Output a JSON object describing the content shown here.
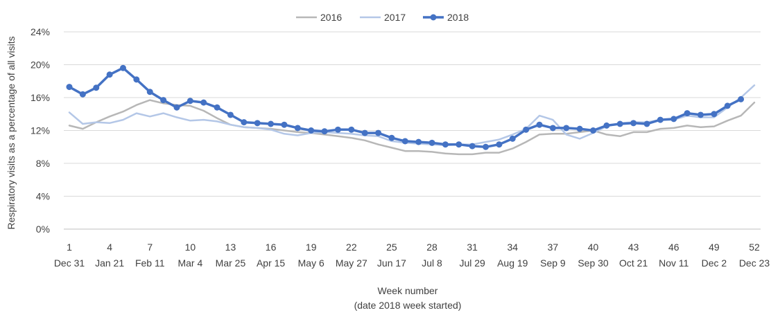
{
  "chart_data": {
    "type": "line",
    "title": "",
    "xlabel": "Week number",
    "xlabel_sub": "(date 2018 week started)",
    "ylabel": "Respiratory visits as a percentage of all visits",
    "ylim": [
      0,
      24
    ],
    "yticks": [
      "0%",
      "4%",
      "8%",
      "12%",
      "16%",
      "20%",
      "24%"
    ],
    "y_tick_values": [
      0,
      4,
      8,
      12,
      16,
      20,
      24
    ],
    "x_tick_weeks": [
      1,
      4,
      7,
      10,
      13,
      16,
      19,
      22,
      25,
      28,
      31,
      34,
      37,
      40,
      43,
      46,
      49,
      52
    ],
    "x_tick_dates": [
      "Dec 31",
      "Jan 21",
      "Feb 11",
      "Mar 4",
      "Mar 25",
      "Apr 15",
      "May 6",
      "May 27",
      "Jun 17",
      "Jul 8",
      "Jul 29",
      "Aug 19",
      "Sep 9",
      "Sep 30",
      "Oct 21",
      "Nov 11",
      "Dec 2",
      "Dec 23"
    ],
    "grid": "horizontal",
    "legend_position": "top-center",
    "series": [
      {
        "name": "2016",
        "color": "#b7b7b7",
        "markers": false,
        "x": [
          1,
          2,
          3,
          4,
          5,
          6,
          7,
          8,
          9,
          10,
          11,
          12,
          13,
          14,
          15,
          16,
          17,
          18,
          19,
          20,
          21,
          22,
          23,
          24,
          25,
          26,
          27,
          28,
          29,
          30,
          31,
          32,
          33,
          34,
          35,
          36,
          37,
          38,
          39,
          40,
          41,
          42,
          43,
          44,
          45,
          46,
          47,
          48,
          49,
          50,
          51,
          52
        ],
        "values": [
          12.6,
          12.2,
          13.0,
          13.7,
          14.3,
          15.1,
          15.7,
          15.3,
          15.1,
          15.0,
          14.4,
          13.5,
          12.7,
          12.4,
          12.3,
          12.2,
          12.0,
          11.8,
          11.7,
          11.5,
          11.3,
          11.1,
          10.8,
          10.3,
          9.9,
          9.5,
          9.5,
          9.4,
          9.2,
          9.1,
          9.1,
          9.3,
          9.3,
          9.8,
          10.6,
          11.5,
          11.6,
          11.6,
          11.8,
          12.0,
          11.5,
          11.3,
          11.8,
          11.8,
          12.2,
          12.3,
          12.6,
          12.4,
          12.5,
          13.2,
          13.8,
          15.4
        ]
      },
      {
        "name": "2017",
        "color": "#b4c7e7",
        "markers": false,
        "x": [
          1,
          2,
          3,
          4,
          5,
          6,
          7,
          8,
          9,
          10,
          11,
          12,
          13,
          14,
          15,
          16,
          17,
          18,
          19,
          20,
          21,
          22,
          23,
          24,
          25,
          26,
          27,
          28,
          29,
          30,
          31,
          32,
          33,
          34,
          35,
          36,
          37,
          38,
          39,
          40,
          41,
          42,
          43,
          44,
          45,
          46,
          47,
          48,
          49,
          50,
          51,
          52
        ],
        "values": [
          14.2,
          12.8,
          13.0,
          12.9,
          13.3,
          14.1,
          13.7,
          14.1,
          13.6,
          13.2,
          13.3,
          13.1,
          12.7,
          12.4,
          12.3,
          12.1,
          11.6,
          11.4,
          11.7,
          11.8,
          11.7,
          11.6,
          11.4,
          11.3,
          10.7,
          10.5,
          10.4,
          10.3,
          10.2,
          10.3,
          10.3,
          10.6,
          10.9,
          11.5,
          12.2,
          13.8,
          13.3,
          11.5,
          11.0,
          11.7,
          12.5,
          12.9,
          13.0,
          13.0,
          13.3,
          13.3,
          13.8,
          13.6,
          13.6,
          14.8,
          16.0,
          17.5
        ]
      },
      {
        "name": "2018",
        "color": "#4472c4",
        "markers": true,
        "x": [
          1,
          2,
          3,
          4,
          5,
          6,
          7,
          8,
          9,
          10,
          11,
          12,
          13,
          14,
          15,
          16,
          17,
          18,
          19,
          20,
          21,
          22,
          23,
          24,
          25,
          26,
          27,
          28,
          29,
          30,
          31,
          32,
          33,
          34,
          35,
          36,
          37,
          38,
          39,
          40,
          41,
          42,
          43,
          44,
          45,
          46,
          47,
          48,
          49,
          50,
          51
        ],
        "values": [
          17.3,
          16.4,
          17.2,
          18.8,
          19.6,
          18.2,
          16.7,
          15.7,
          14.8,
          15.6,
          15.4,
          14.8,
          13.9,
          13.0,
          12.9,
          12.8,
          12.7,
          12.3,
          12.0,
          11.9,
          12.1,
          12.1,
          11.7,
          11.7,
          11.1,
          10.7,
          10.6,
          10.5,
          10.3,
          10.3,
          10.1,
          10.0,
          10.3,
          11.0,
          12.1,
          12.7,
          12.3,
          12.3,
          12.2,
          12.0,
          12.6,
          12.8,
          12.9,
          12.8,
          13.3,
          13.4,
          14.1,
          13.9,
          14.0,
          15.0,
          15.8
        ]
      }
    ]
  }
}
